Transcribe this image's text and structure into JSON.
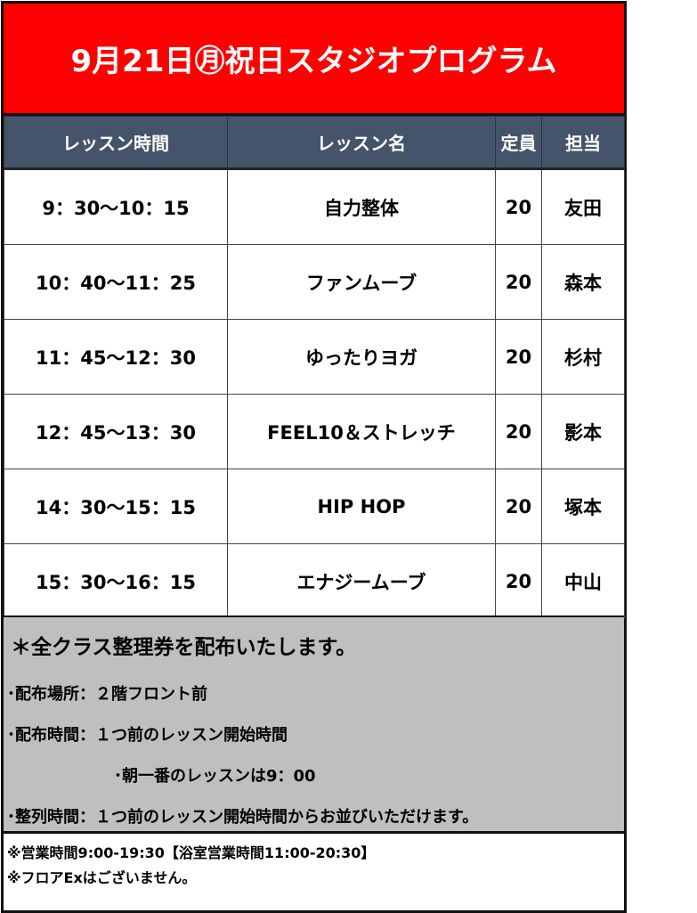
{
  "title": "9月21日㊊祝日スタジオプログラム",
  "colors": {
    "title_bg": "#ff0000",
    "header_bg": "#44546a",
    "notes_bg": "#bfbfbf"
  },
  "table": {
    "headers": [
      "レッスン時間",
      "レッスン名",
      "定員",
      "担当"
    ],
    "rows": [
      [
        "9：30～10：15",
        "自力整体",
        "20",
        "友田"
      ],
      [
        "10：40～11：25",
        "ファンムーブ",
        "20",
        "森本"
      ],
      [
        "11：45～12：30",
        "ゆったりヨガ",
        "20",
        "杉村"
      ],
      [
        "12：45～13：30",
        "FEEL10＆ストレッチ",
        "20",
        "影本"
      ],
      [
        "14：30～15：15",
        "HIP HOP",
        "20",
        "塚本"
      ],
      [
        "15：30～16：15",
        "エナジームーブ",
        "20",
        "中山"
      ]
    ]
  },
  "notes": {
    "heading": "＊全クラス整理券を配布いたします。",
    "lines": [
      "･配布場所：２階フロント前",
      "･配布時間：１つ前のレッスン開始時間",
      "･朝一番のレッスンは9：00",
      "･整列時間：１つ前のレッスン開始時間からお並びいただけます。"
    ]
  },
  "footer": [
    "※営業時間9:00-19:30【浴室営業時間11:00-20:30】",
    "※フロアExはございません。"
  ]
}
